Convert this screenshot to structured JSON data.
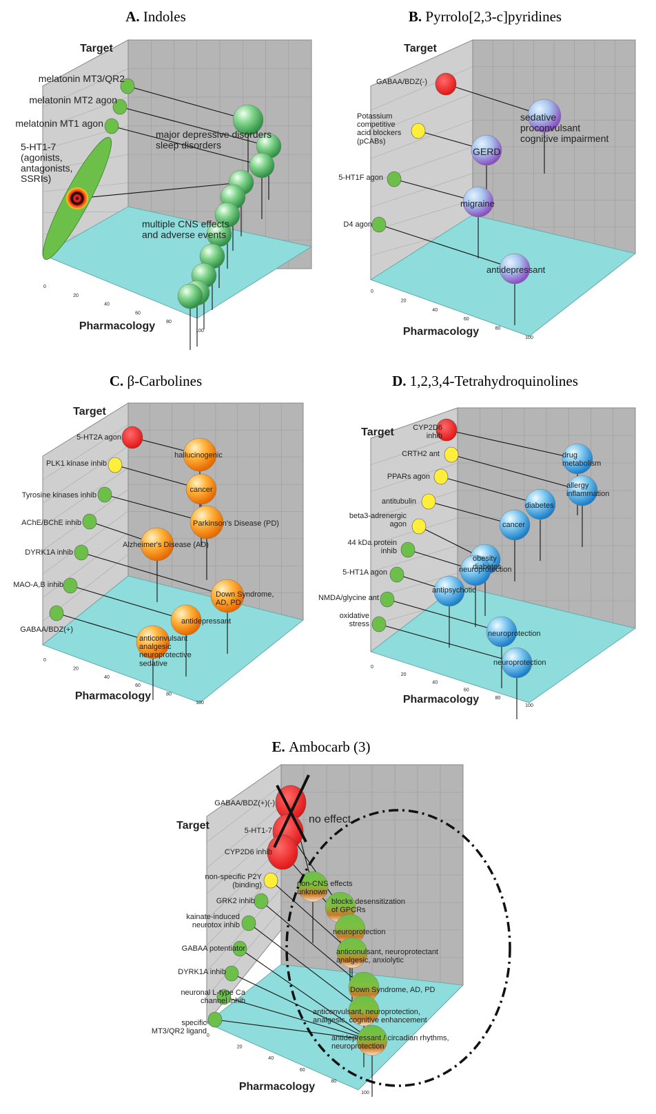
{
  "axis": {
    "target": "Target",
    "pharmacology": "Pharmacology",
    "ticks": [
      "0",
      "20",
      "40",
      "60",
      "80",
      "100"
    ]
  },
  "panels": [
    {
      "id": "A",
      "letter": "A.",
      "title": "Indoles",
      "targets": [
        {
          "label": "melatonin MT3/QR2",
          "color": "green"
        },
        {
          "label": "melatonin MT2 agon",
          "color": "green"
        },
        {
          "label": "melatonin MT1 agon",
          "color": "green"
        },
        {
          "label": "5-HT1-7\n(agonists,\nantagonists,\nSSRIs)",
          "color": "ellipse"
        }
      ],
      "outcomes": [
        {
          "label": "major depressive disorders\nsleep disorders",
          "color": "green"
        },
        {
          "label": "multiple CNS effects\nand adverse events",
          "color": "green"
        }
      ]
    },
    {
      "id": "B",
      "letter": "B.",
      "title": "Pyrrolo[2,3-c]pyridines",
      "targets": [
        {
          "label": "GABAA/BDZ(-)",
          "color": "red"
        },
        {
          "label": "Potassium\ncompetitive\nacid blockers\n(pCABs)",
          "color": "yellow"
        },
        {
          "label": "5-HT1F agon",
          "color": "green"
        },
        {
          "label": "D4 agon",
          "color": "green"
        }
      ],
      "outcomes": [
        {
          "label": "sedative\nproconvulsant\ncognitive impairment",
          "color": "purple"
        },
        {
          "label": "GERD",
          "color": "purple"
        },
        {
          "label": "migraine",
          "color": "purple"
        },
        {
          "label": "antidepressant",
          "color": "purple"
        }
      ]
    },
    {
      "id": "C",
      "letter": "C.",
      "title": "β-Carbolines",
      "targets": [
        {
          "label": "5-HT2A agon",
          "color": "red"
        },
        {
          "label": "PLK1 kinase inhib",
          "color": "yellow"
        },
        {
          "label": "Tyrosine kinases inhib",
          "color": "green"
        },
        {
          "label": "AChE/BChE inhib",
          "color": "green"
        },
        {
          "label": "DYRK1A inhib",
          "color": "green"
        },
        {
          "label": "MAO-A,B inhib",
          "color": "green"
        },
        {
          "label": "GABAA/BDZ(+)",
          "color": "green"
        }
      ],
      "outcomes": [
        {
          "label": "hallucinogenic",
          "color": "orange"
        },
        {
          "label": "cancer",
          "color": "orange"
        },
        {
          "label": "Parkinson's Disease (PD)",
          "color": "orange"
        },
        {
          "label": "Alzheimer's Disease (AD)",
          "color": "orange"
        },
        {
          "label": "Down Syndrome,\nAD, PD",
          "color": "orange"
        },
        {
          "label": "antidepressant",
          "color": "orange"
        },
        {
          "label": "anticonvulsant\nanalgesic\nneuroprotective\nsedative",
          "color": "orange"
        }
      ]
    },
    {
      "id": "D",
      "letter": "D.",
      "title": "1,2,3,4-Tetrahydroquinolines",
      "targets": [
        {
          "label": "CYP2D6\ninhib",
          "color": "red"
        },
        {
          "label": "CRTH2 ant",
          "color": "yellow"
        },
        {
          "label": "PPARs agon",
          "color": "yellow"
        },
        {
          "label": "antitubulin",
          "color": "yellow"
        },
        {
          "label": "beta3-adrenergic\nagon",
          "color": "yellow"
        },
        {
          "label": "44 kDa protein\ninhib",
          "color": "green"
        },
        {
          "label": "5-HT1A agon",
          "color": "green"
        },
        {
          "label": "NMDA/glycine ant",
          "color": "green"
        },
        {
          "label": "oxidative\nstress",
          "color": "green"
        }
      ],
      "outcomes": [
        {
          "label": "drug\nmetabolism",
          "color": "blue"
        },
        {
          "label": "allergy\ninflammation",
          "color": "blue"
        },
        {
          "label": "diabetes",
          "color": "blue"
        },
        {
          "label": "cancer",
          "color": "blue"
        },
        {
          "label": "obesity\ndiabetes",
          "color": "blue"
        },
        {
          "label": "neuroprotection",
          "color": "blue"
        },
        {
          "label": "antipsychotic",
          "color": "blue"
        },
        {
          "label": "neuroprotection",
          "color": "blue"
        },
        {
          "label": "neuroprotection",
          "color": "blue"
        }
      ]
    },
    {
      "id": "E",
      "letter": "E.",
      "title": "Ambocarb (3)",
      "targets": [
        {
          "label": "GABAA/BDZ(+)(-)",
          "color": "red"
        },
        {
          "label": "5-HT1-7",
          "color": "red"
        },
        {
          "label": "CYP2D6 inhib",
          "color": "red"
        },
        {
          "label": "non-specific P2Y\n(binding)",
          "color": "yellow"
        },
        {
          "label": "GRK2 inhib",
          "color": "green"
        },
        {
          "label": "kainate-induced\nneurotox inhib",
          "color": "green"
        },
        {
          "label": "GABAA potentiator",
          "color": "green"
        },
        {
          "label": "DYRK1A inhib",
          "color": "green"
        },
        {
          "label": "neuronal L-type Ca\nchannel inhib",
          "color": "green"
        },
        {
          "label": "specific\nMT3/QR2 ligand",
          "color": "green"
        }
      ],
      "no_effect": "no effect",
      "outcomes": [
        {
          "label": "non-CNS effects\nunknown",
          "color": "greenbrown"
        },
        {
          "label": "blocks desensitization\nof GPCRs",
          "color": "greenbrown"
        },
        {
          "label": "neuroprotection",
          "color": "greenbrown"
        },
        {
          "label": "anticonulsant, neuroprotectant\nanalgesic, anxiolytic",
          "color": "greenbrown"
        },
        {
          "label": "Down Syndrome, AD, PD",
          "color": "greenbrown"
        },
        {
          "label": "anticonvulsant, neuroprotection,\nanalgesic, cognitive enhancement",
          "color": "greenbrown"
        },
        {
          "label": "antidepressant / circadian rhythms,\nneuroprotection",
          "color": "greenbrown"
        }
      ]
    }
  ]
}
